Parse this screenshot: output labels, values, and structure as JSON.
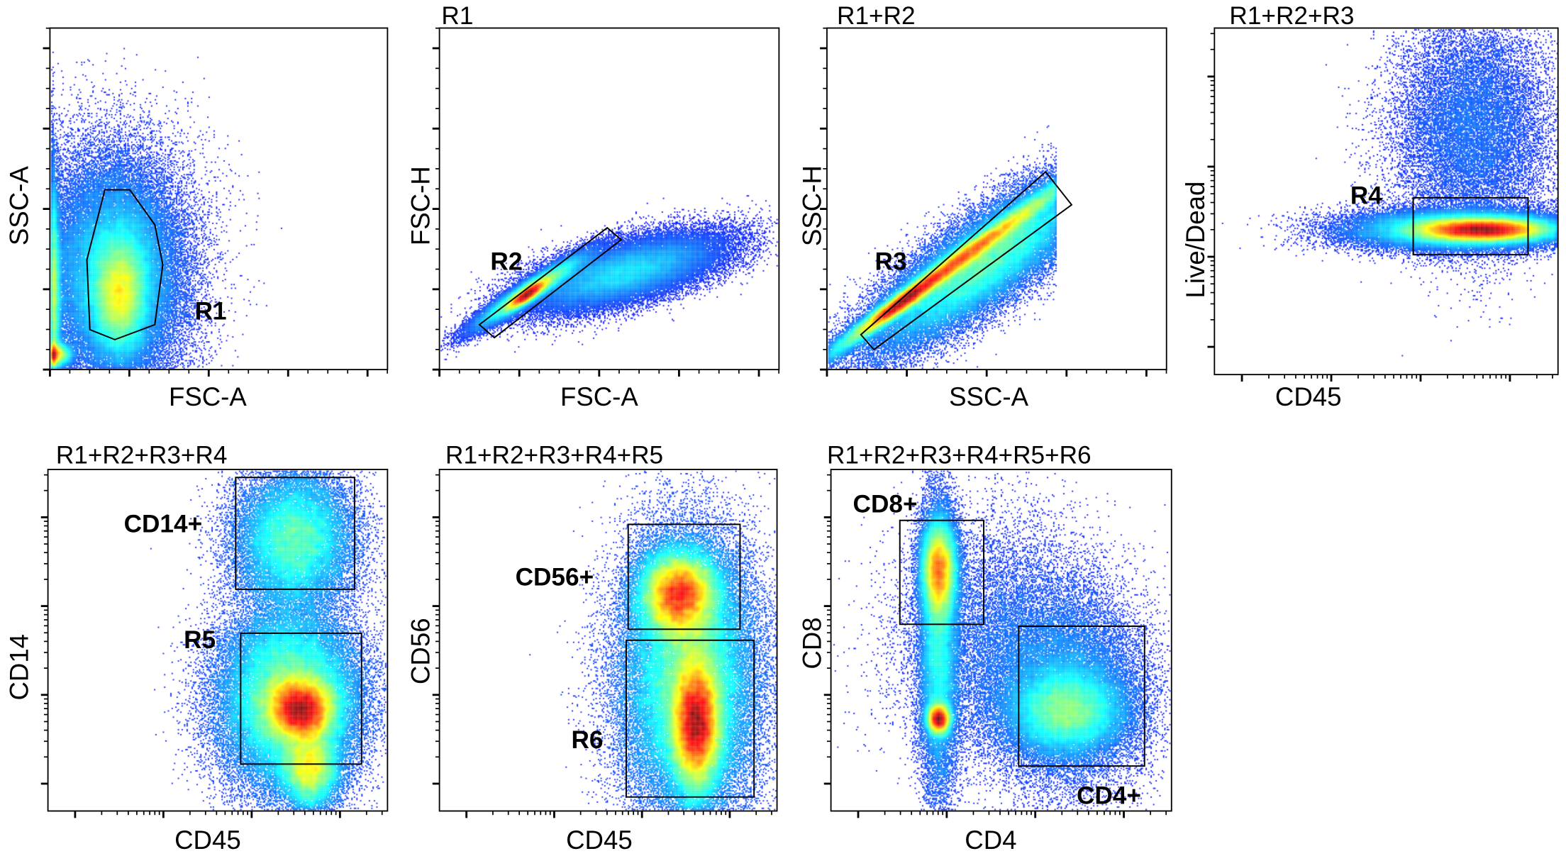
{
  "chart_data": [
    {
      "type": "scatter",
      "style": "density",
      "title": "",
      "xlabel": "FSC-A",
      "ylabel": "SSC-A",
      "scale": "linear",
      "gates": [
        {
          "name": "R1"
        }
      ]
    },
    {
      "type": "scatter",
      "style": "density",
      "title": "R1",
      "xlabel": "FSC-A",
      "ylabel": "FSC-H",
      "scale": "linear",
      "gates": [
        {
          "name": "R2"
        }
      ]
    },
    {
      "type": "scatter",
      "style": "density",
      "title": "R1+R2",
      "xlabel": "SSC-A",
      "ylabel": "SSC-H",
      "scale": "linear",
      "gates": [
        {
          "name": "R3"
        }
      ]
    },
    {
      "type": "scatter",
      "style": "density",
      "title": "R1+R2+R3",
      "xlabel": "CD45",
      "ylabel": "Live/Dead",
      "scale": "log",
      "gates": [
        {
          "name": "R4"
        }
      ]
    },
    {
      "type": "scatter",
      "style": "density",
      "title": "R1+R2+R3+R4",
      "xlabel": "CD45",
      "ylabel": "CD14",
      "scale": "log",
      "gates": [
        {
          "name": "CD14+"
        },
        {
          "name": "R5"
        }
      ]
    },
    {
      "type": "scatter",
      "style": "density",
      "title": "R1+R2+R3+R4+R5",
      "xlabel": "CD45",
      "ylabel": "CD56",
      "scale": "log",
      "gates": [
        {
          "name": "CD56+"
        },
        {
          "name": "R6"
        }
      ]
    },
    {
      "type": "scatter",
      "style": "density",
      "title": "R1+R2+R3+R4+R5+R6",
      "xlabel": "CD4",
      "ylabel": "CD8",
      "scale": "log",
      "gates": [
        {
          "name": "CD8+"
        },
        {
          "name": "CD4+"
        }
      ]
    }
  ],
  "colormap": [
    "#0000ff",
    "#00ffff",
    "#00ff00",
    "#ffff00",
    "#ff0000"
  ],
  "gate_color": "#000000"
}
